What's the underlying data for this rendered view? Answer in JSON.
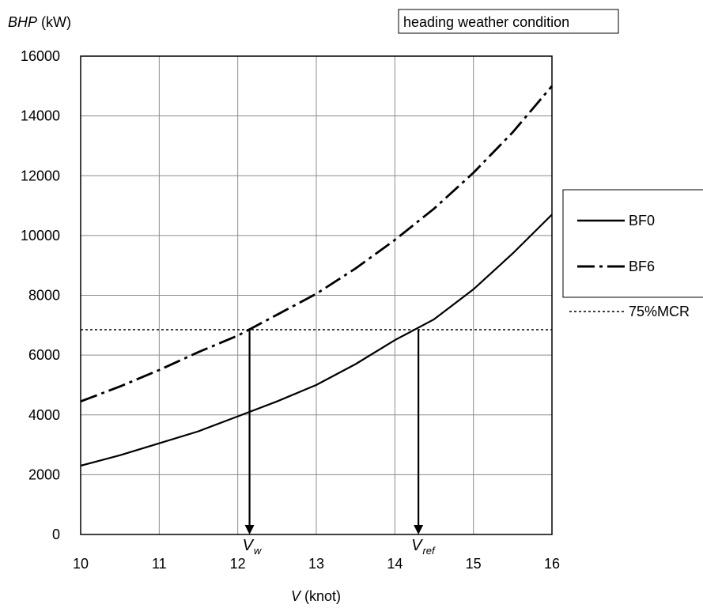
{
  "chart_data": {
    "type": "line",
    "y_axis_label": {
      "symbol": "BHP",
      "unit": "(kW)"
    },
    "x_axis_label": {
      "symbol": "V",
      "unit": "(knot)"
    },
    "condition_box": "heading weather condition",
    "xlim": [
      10,
      16
    ],
    "ylim": [
      0,
      16000
    ],
    "x_ticks": [
      10,
      11,
      12,
      13,
      14,
      15,
      16
    ],
    "y_ticks": [
      0,
      2000,
      4000,
      6000,
      8000,
      10000,
      12000,
      14000,
      16000
    ],
    "grid": true,
    "legend_position": "right",
    "series": [
      {
        "name": "BF0",
        "style": "solid",
        "color": "#000000",
        "x": [
          10,
          10.5,
          11,
          11.5,
          12,
          12.5,
          13,
          13.5,
          14,
          14.5,
          15,
          15.5,
          16
        ],
        "y": [
          2300,
          2650,
          3050,
          3450,
          3950,
          4450,
          5000,
          5700,
          6500,
          7200,
          8200,
          9400,
          10700
        ]
      },
      {
        "name": "BF6",
        "style": "dash-dot",
        "color": "#000000",
        "x": [
          10,
          10.5,
          11,
          11.5,
          12,
          12.5,
          13,
          13.5,
          14,
          14.5,
          15,
          15.5,
          16
        ],
        "y": [
          4450,
          4950,
          5500,
          6100,
          6650,
          7350,
          8050,
          8900,
          9850,
          10900,
          12100,
          13450,
          15000
        ]
      },
      {
        "name": "75%MCR",
        "style": "dotted",
        "color": "#000000",
        "x": [
          10,
          16
        ],
        "y": [
          6850,
          6850
        ]
      }
    ],
    "annotations": [
      {
        "label": "V",
        "subscript": "w",
        "x": 12.15,
        "y_from": 6850,
        "y_to": 0
      },
      {
        "label": "V",
        "subscript": "ref",
        "x": 14.3,
        "y_from": 6850,
        "y_to": 0
      }
    ]
  }
}
